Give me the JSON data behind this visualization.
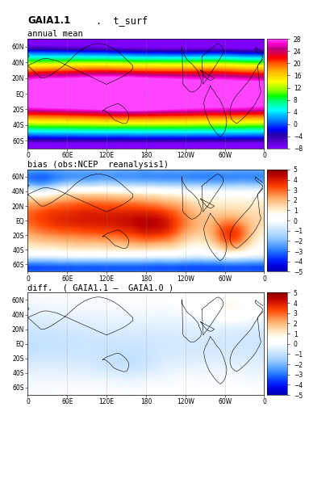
{
  "title1_bold": "GAIA1.1",
  "title1_mono": "t_surf",
  "subtitle1": "annual mean",
  "title2": "bias (obs:NCEP  reanalysis1)",
  "title3": "diff.  ( GAIA1.1 —  GAIA1.0 )",
  "colorbar1_ticks": [
    -8,
    -4,
    0,
    4,
    8,
    12,
    16,
    20,
    24,
    28
  ],
  "colorbar2_ticks": [
    -5,
    -4,
    -3,
    -2,
    -1,
    0,
    1,
    2,
    3,
    4,
    5
  ],
  "colorbar3_ticks": [
    -5,
    -4,
    -3,
    -2,
    -1,
    0,
    1,
    2,
    3,
    4,
    5
  ],
  "xlabels": [
    "0",
    "60E",
    "120E",
    "180",
    "120W",
    "60W",
    "0"
  ],
  "ylabels": [
    "60S",
    "40S",
    "20S",
    "EQ",
    "20N",
    "40N",
    "60N"
  ],
  "vmin1": -8,
  "vmax1": 28,
  "vmin2": -5,
  "vmax2": 5,
  "figsize": [
    3.83,
    6.03
  ],
  "dpi": 100,
  "cmap1_colors": [
    "#7f00ff",
    "#6600dd",
    "#4400bb",
    "#2200aa",
    "#0000ff",
    "#0044ff",
    "#0088ff",
    "#00bbff",
    "#00ffff",
    "#00ffbb",
    "#00ff77",
    "#00ff00",
    "#77ff00",
    "#bbff00",
    "#ffff00",
    "#ffdd00",
    "#ffbb00",
    "#ff8800",
    "#ff5500",
    "#ff0000",
    "#dd0044",
    "#bb0088",
    "#ff00cc",
    "#ff44ff"
  ],
  "cmap2_colors": [
    "#0000aa",
    "#0000dd",
    "#0022ff",
    "#1155ff",
    "#3388ff",
    "#66aaff",
    "#99ccff",
    "#bbddff",
    "#ddeeff",
    "#ffffff",
    "#ffffff",
    "#ffeecc",
    "#ffcc99",
    "#ffaa66",
    "#ff7733",
    "#ff4400",
    "#dd2200",
    "#bb0000",
    "#880000"
  ]
}
